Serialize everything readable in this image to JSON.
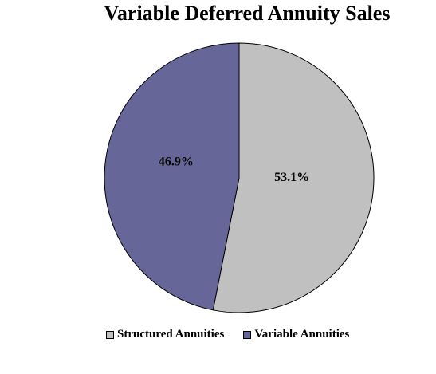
{
  "chart_data": {
    "type": "pie",
    "title": "Variable Deferred Annuity Sales",
    "categories": [
      "Structured Annuities",
      "Variable Annuities"
    ],
    "values": [
      53.1,
      46.9
    ],
    "data_labels": [
      "53.1%",
      "46.9%"
    ],
    "colors": [
      "#C0C0C0",
      "#666699"
    ],
    "start_angle": "12 o'clock",
    "direction": "clockwise",
    "legend_position": "bottom"
  }
}
